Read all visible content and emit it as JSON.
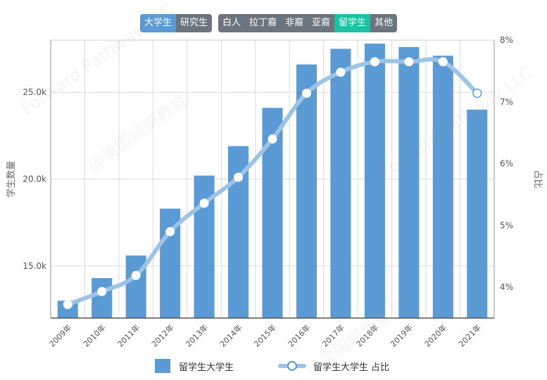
{
  "buttons": {
    "level": [
      "大学生",
      "研究生"
    ],
    "race": [
      "白人",
      "拉丁裔",
      "非裔",
      "亚裔",
      "留学生",
      "其他"
    ]
  },
  "colors": {
    "bar": "#5b9bd5",
    "line": "#9dc3e6",
    "level_active": "#5b9bd5",
    "race_active": "#17c3a2",
    "inactive": "#6c757d"
  },
  "watermark": {
    "text_a": "@美国続新教育",
    "text_b": "Forward Pathway LLC"
  },
  "chart_data": {
    "type": "bar",
    "categories": [
      "2009年",
      "2010年",
      "2011年",
      "2012年",
      "2013年",
      "2014年",
      "2015年",
      "2016年",
      "2017年",
      "2018年",
      "2019年",
      "2020年",
      "2021年"
    ],
    "series": [
      {
        "name": "留学生大学生",
        "type": "bar",
        "axis": "left",
        "values": [
          13000,
          14300,
          15600,
          18300,
          20200,
          21900,
          24100,
          26600,
          27500,
          27800,
          27600,
          27100,
          24000
        ]
      },
      {
        "name": "留学生大学生 占比",
        "type": "line",
        "axis": "right",
        "values": [
          3.72,
          3.93,
          4.19,
          4.9,
          5.36,
          5.78,
          6.4,
          7.14,
          7.48,
          7.65,
          7.65,
          7.65,
          7.14
        ]
      }
    ],
    "ylabel": "学生数量",
    "y2label": "占比",
    "ylim": [
      12000,
      28000
    ],
    "y2lim": [
      3.5,
      8.0
    ],
    "yticks": [
      "15.0k",
      "20.0k",
      "25.0k"
    ],
    "y2ticks": [
      "4%",
      "5%",
      "6%",
      "7%",
      "8%"
    ],
    "grid": true,
    "legend": "bottom-center"
  }
}
